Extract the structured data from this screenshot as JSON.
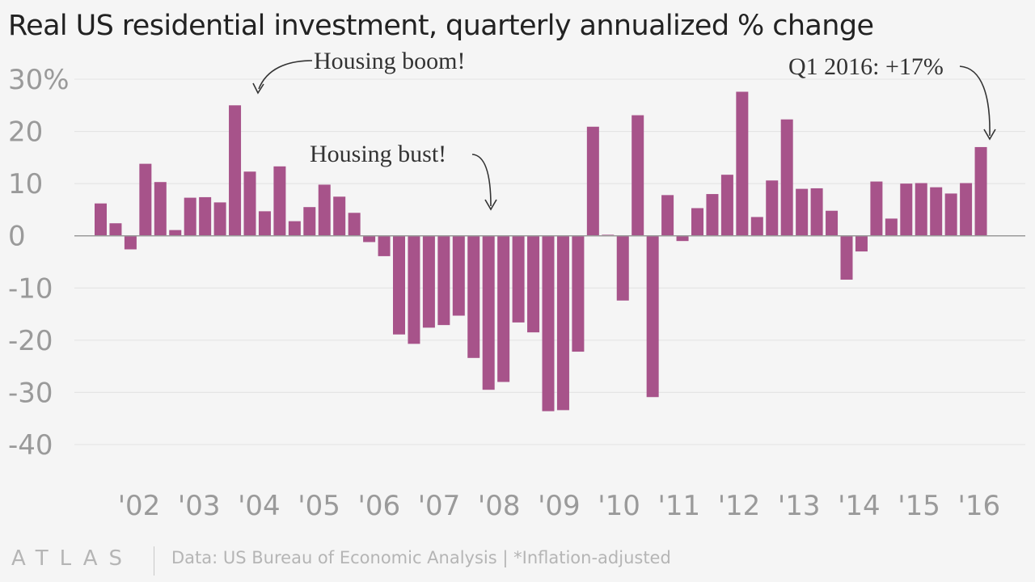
{
  "title": "Real US residential investment, quarterly annualized % change",
  "footer": {
    "logo": "ATLAS",
    "source": "Data: US Bureau of Economic Analysis | *Inflation-adjusted"
  },
  "colors": {
    "bar": "#a7538a",
    "grid": "#e2e2e2",
    "axis": "#9a9a9a",
    "annotation": "#333333"
  },
  "annotations": {
    "boom": "Housing boom!",
    "bust": "Housing bust!",
    "latest": "Q1 2016: +17%"
  },
  "chart_data": {
    "type": "bar",
    "title": "Real US residential investment, quarterly annualized % change",
    "xlabel": "",
    "ylabel": "",
    "ylim": [
      -40,
      30
    ],
    "yticks": [
      30,
      20,
      10,
      0,
      -10,
      -20,
      -30,
      -40
    ],
    "ytick_labels": [
      "30%",
      "20",
      "10",
      "0",
      "-10",
      "-20",
      "-30",
      "-40"
    ],
    "xtick_labels": [
      "'02",
      "'03",
      "'04",
      "'05",
      "'06",
      "'07",
      "'08",
      "'09",
      "'10",
      "'11",
      "'12",
      "'13",
      "'14",
      "'15",
      "'16"
    ],
    "grid": true,
    "values": [
      6.2,
      2.4,
      -2.6,
      13.8,
      10.3,
      1.1,
      7.3,
      7.4,
      6.4,
      25.0,
      12.3,
      4.7,
      13.3,
      2.8,
      5.5,
      9.8,
      7.5,
      4.4,
      -1.2,
      -3.9,
      -18.9,
      -20.7,
      -17.6,
      -17.1,
      -15.3,
      -23.4,
      -29.5,
      -28.0,
      -16.6,
      -18.5,
      -33.6,
      -33.4,
      -22.2,
      20.9,
      0.2,
      -12.4,
      23.1,
      -30.9,
      7.8,
      -1.0,
      5.3,
      8.0,
      11.7,
      27.6,
      3.6,
      10.6,
      22.3,
      9.0,
      9.1,
      4.8,
      -8.4,
      -3.0,
      10.4,
      3.3,
      10.0,
      10.1,
      9.3,
      8.1,
      10.1,
      17.0
    ]
  }
}
